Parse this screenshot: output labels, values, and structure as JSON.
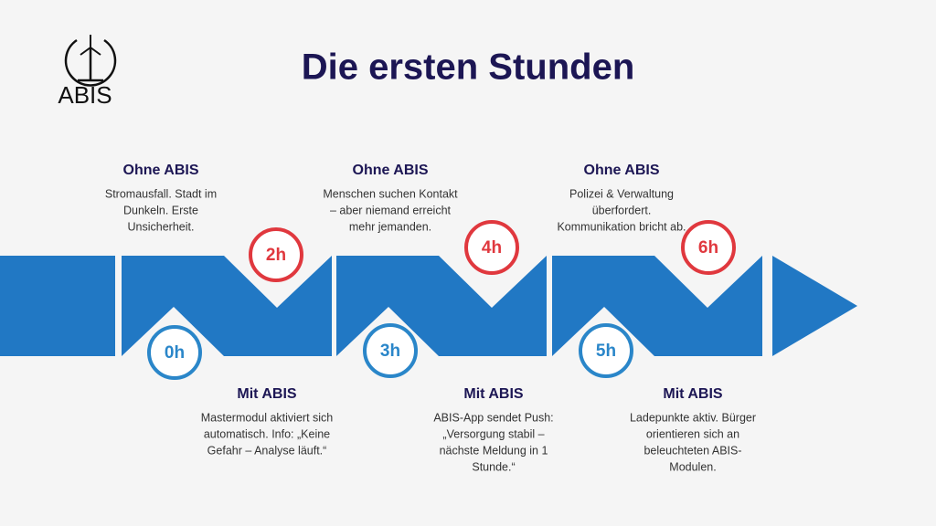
{
  "logo": {
    "text": "ABIS"
  },
  "title": "Die ersten Stunden",
  "milestones": [
    "0h",
    "2h",
    "3h",
    "4h",
    "5h",
    "6h"
  ],
  "without": [
    {
      "heading": "Ohne ABIS",
      "lines": [
        "Stromausfall. Stadt im",
        "Dunkeln. Erste",
        "Unsicherheit."
      ]
    },
    {
      "heading": "Ohne ABIS",
      "lines": [
        "Menschen suchen Kontakt",
        "– aber niemand erreicht",
        "mehr jemanden."
      ]
    },
    {
      "heading": "Ohne ABIS",
      "lines": [
        "Polizei & Verwaltung",
        "überfordert.",
        "Kommunikation bricht ab."
      ]
    }
  ],
  "with": [
    {
      "heading": "Mit ABIS",
      "lines": [
        "Mastermodul aktiviert sich",
        "automatisch. Info: „Keine",
        "Gefahr – Analyse läuft.“"
      ]
    },
    {
      "heading": "Mit ABIS",
      "lines": [
        "ABIS-App sendet Push:",
        "„Versorgung stabil –",
        "nächste Meldung in 1",
        "Stunde.“"
      ]
    },
    {
      "heading": "Mit ABIS",
      "lines": [
        "Ladepunkte aktiv. Bürger",
        "orientieren sich an",
        "beleuchteten ABIS-",
        "Modulen."
      ]
    }
  ]
}
